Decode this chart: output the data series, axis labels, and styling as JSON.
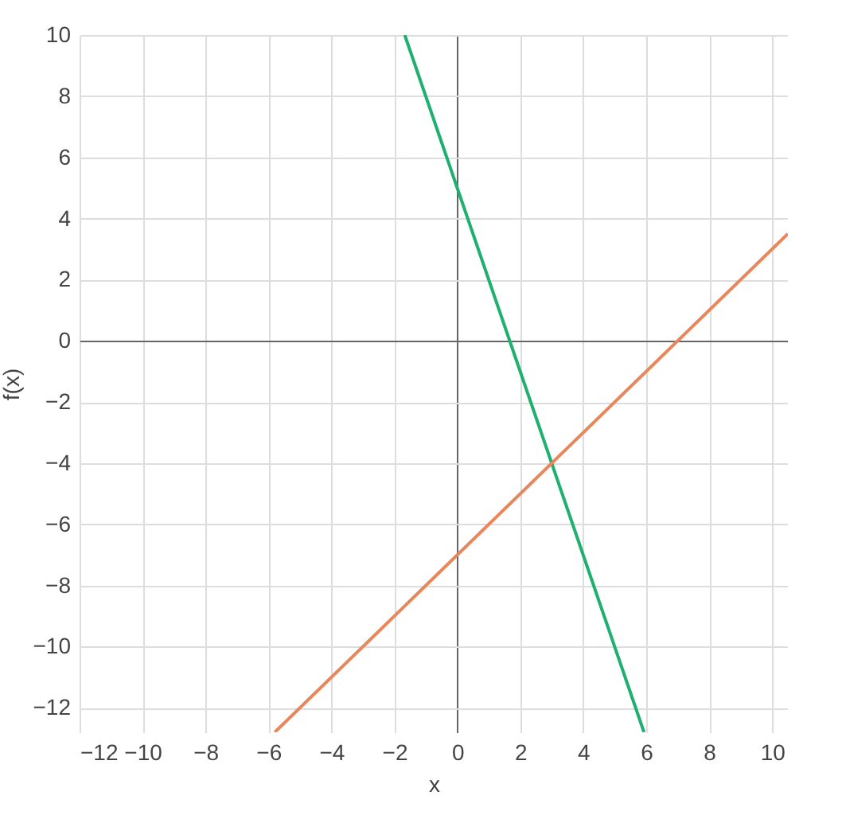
{
  "chart_data": {
    "type": "line",
    "xlabel": "x",
    "ylabel": "f(x)",
    "xlim": [
      -12,
      10.5
    ],
    "ylim": [
      -12.8,
      10
    ],
    "xticks": [
      {
        "value": -12,
        "label": "−12"
      },
      {
        "value": -10,
        "label": "−10"
      },
      {
        "value": -8,
        "label": "−8"
      },
      {
        "value": -6,
        "label": "−6"
      },
      {
        "value": -4,
        "label": "−4"
      },
      {
        "value": -2,
        "label": "−2"
      },
      0,
      2,
      4,
      6,
      8,
      10
    ],
    "yticks": [
      {
        "value": -12,
        "label": "−12"
      },
      {
        "value": -10,
        "label": "−10"
      },
      {
        "value": -8,
        "label": "−8"
      },
      {
        "value": -6,
        "label": "−6"
      },
      {
        "value": -4,
        "label": "−4"
      },
      {
        "value": -2,
        "label": "−2"
      },
      0,
      2,
      4,
      6,
      8,
      10
    ],
    "series": [
      {
        "color": "#1fb06f",
        "x": [
          -1.67,
          5.93
        ],
        "values": [
          10,
          -12.8
        ]
      },
      {
        "color": "#e8875c",
        "x": [
          -5.8,
          10.5
        ],
        "values": [
          -12.8,
          3.5
        ]
      }
    ],
    "grid": true,
    "line_style": "solid",
    "marker": "none"
  }
}
